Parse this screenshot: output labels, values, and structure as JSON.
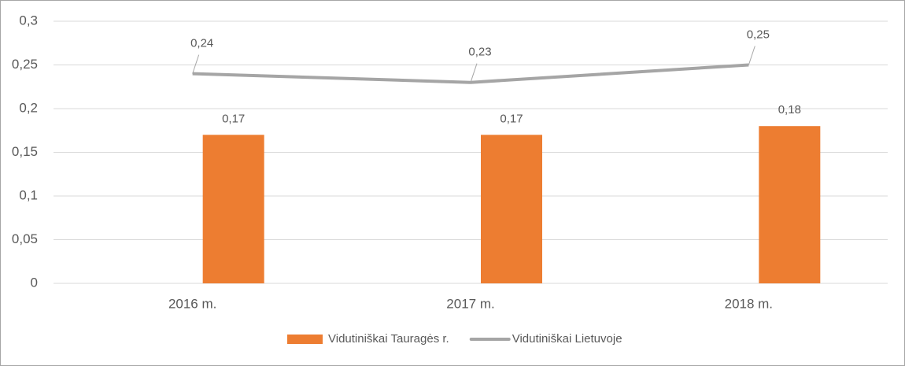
{
  "chart_data": {
    "type": "bar",
    "categories": [
      "2016 m.",
      "2017 m.",
      "2018 m."
    ],
    "series": [
      {
        "name": "Vidutiniškai Tauragės r.",
        "type": "bar",
        "color": "#ed7d31",
        "values": [
          0.17,
          0.17,
          0.18
        ],
        "value_labels": [
          "0,17",
          "0,17",
          "0,18"
        ]
      },
      {
        "name": "Vidutiniškai Lietuvoje",
        "type": "line",
        "color": "#a5a5a5",
        "values": [
          0.24,
          0.23,
          0.25
        ],
        "value_labels": [
          "0,24",
          "0,23",
          "0,25"
        ]
      }
    ],
    "ylim": [
      0,
      0.3
    ],
    "yticks": [
      {
        "value": 0,
        "label": "0"
      },
      {
        "value": 0.05,
        "label": "0,05"
      },
      {
        "value": 0.1,
        "label": "0,1"
      },
      {
        "value": 0.15,
        "label": "0,15"
      },
      {
        "value": 0.2,
        "label": "0,2"
      },
      {
        "value": 0.25,
        "label": "0,25"
      },
      {
        "value": 0.3,
        "label": "0,3"
      }
    ],
    "grid": true,
    "legend": "bottom"
  }
}
